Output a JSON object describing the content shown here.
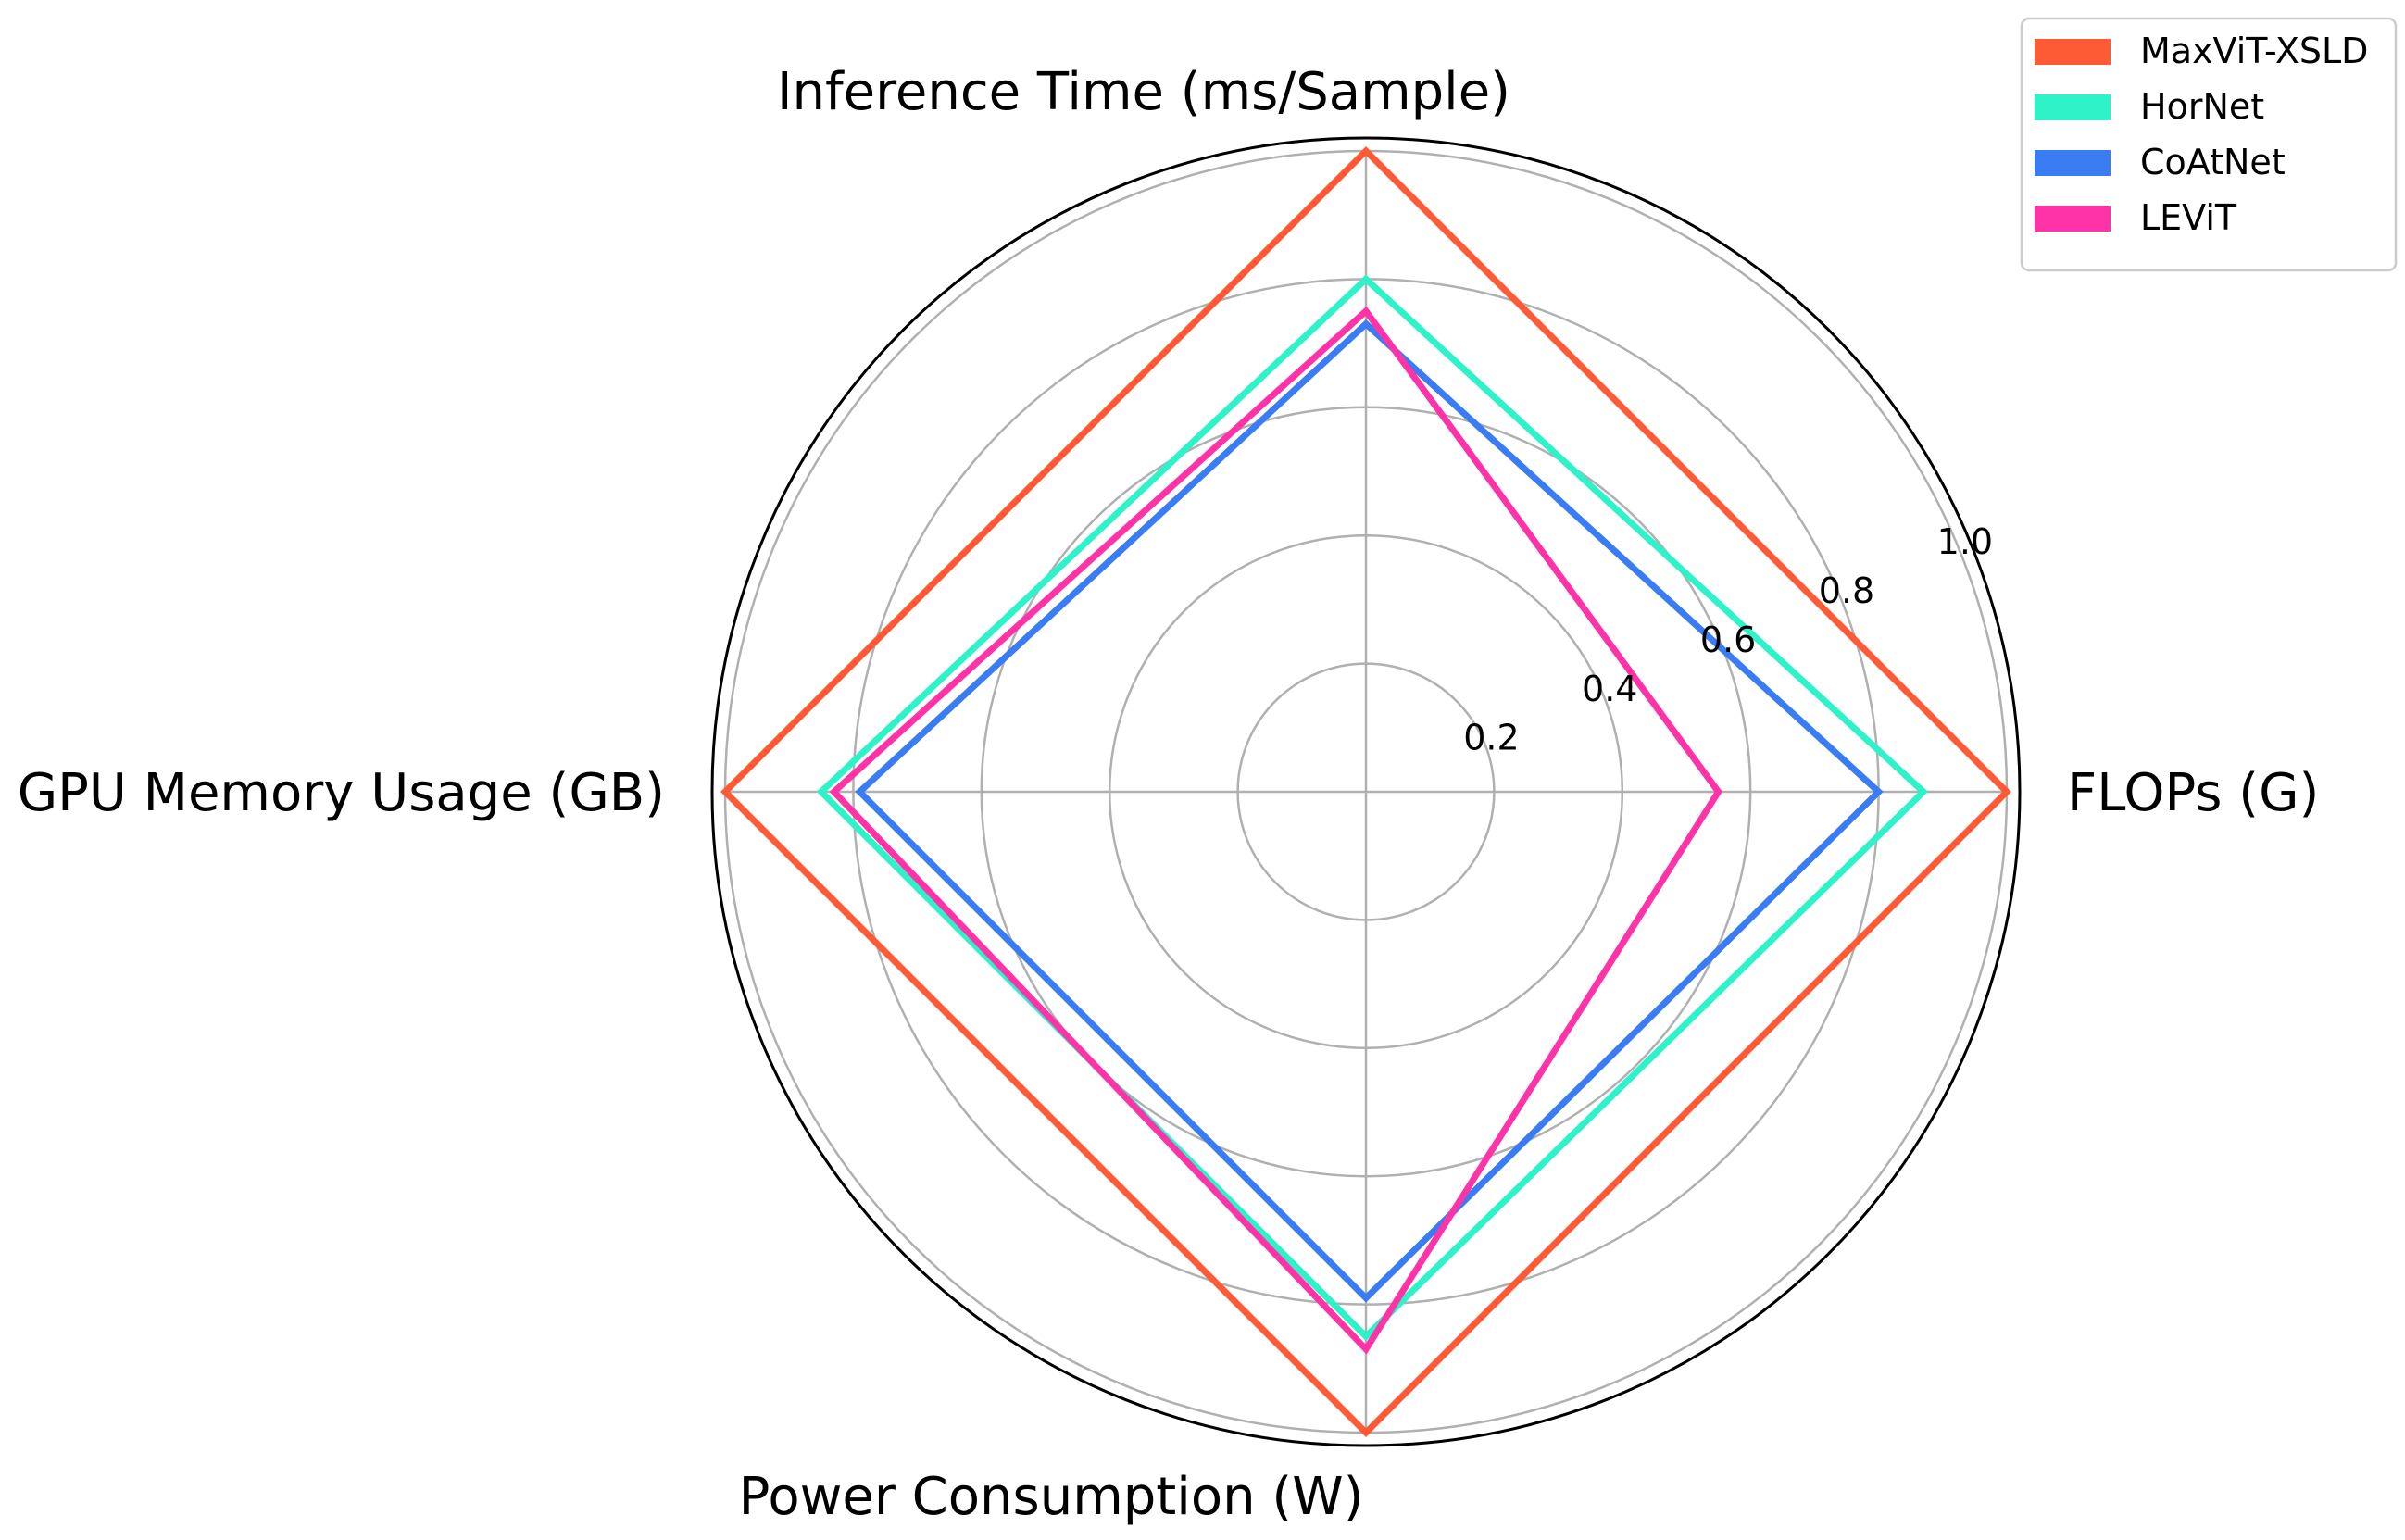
{
  "chart_data": {
    "type": "radar",
    "axes": [
      "FLOPs (G)",
      "Inference Time (ms/Sample)",
      "GPU Memory Usage (GB)",
      "Power Consumption (W)"
    ],
    "radial_ticks": [
      "0.2",
      "0.4",
      "0.6",
      "0.8",
      "1.0"
    ],
    "radial_tick_values": [
      0.2,
      0.4,
      0.6,
      0.8,
      1.0
    ],
    "rlim": [
      0,
      1.0
    ],
    "grid": true,
    "legend_position": "top-right",
    "series": [
      {
        "name": "MaxViT-XSLD",
        "color": "#ff5a36",
        "values": [
          1.0,
          1.0,
          1.0,
          1.0
        ]
      },
      {
        "name": "HorNet",
        "color": "#2ef2c8",
        "values": [
          0.87,
          0.8,
          0.85,
          0.85
        ]
      },
      {
        "name": "CoAtNet",
        "color": "#3a7cf3",
        "values": [
          0.8,
          0.73,
          0.79,
          0.79
        ]
      },
      {
        "name": "LEViT",
        "color": "#ff33a8",
        "values": [
          0.55,
          0.75,
          0.83,
          0.87
        ]
      }
    ]
  }
}
